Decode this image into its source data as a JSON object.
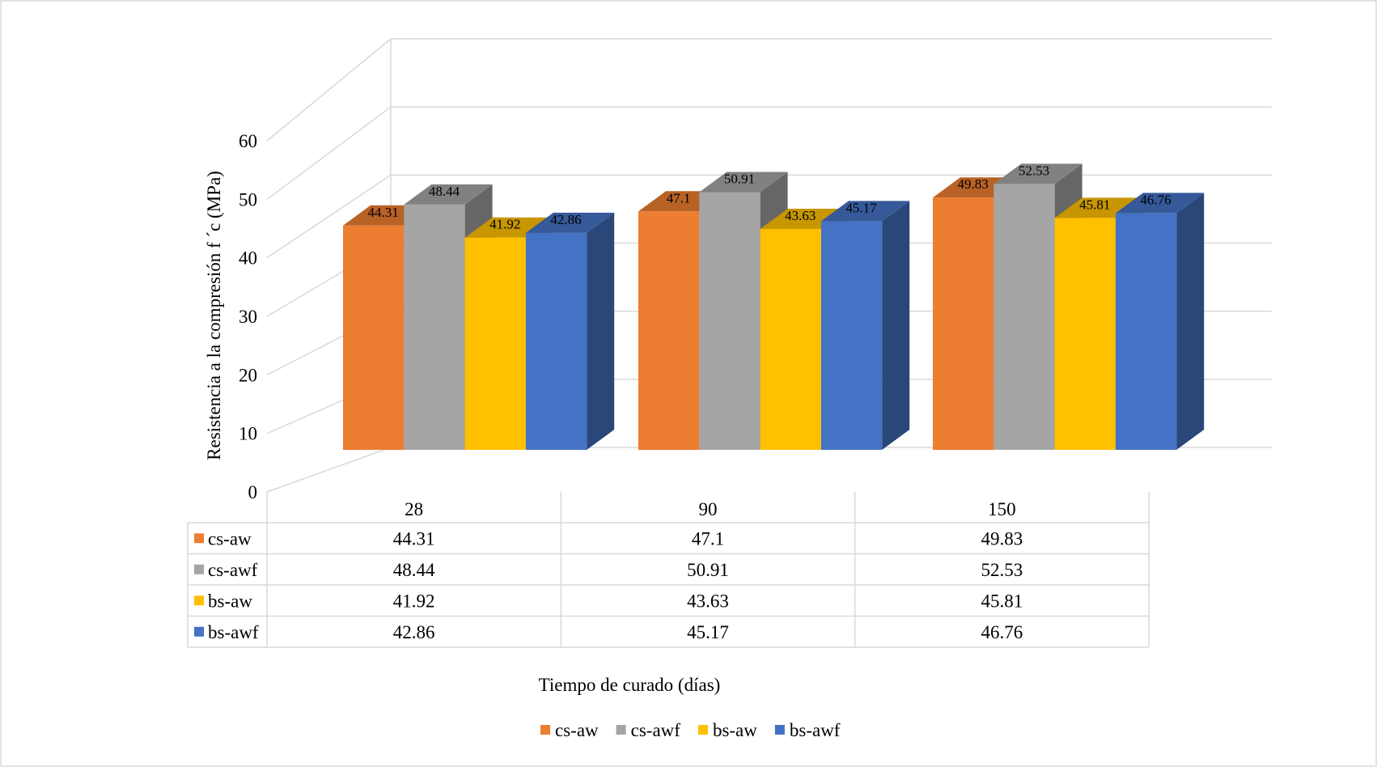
{
  "chart_data": {
    "type": "bar",
    "style": "3d-clustered-column-with-data-table",
    "title": "",
    "xlabel": "Tiempo de curado (días)",
    "ylabel": "Resistencia a la compresión f ´c (MPa)",
    "categories": [
      "28",
      "90",
      "150"
    ],
    "ylim": [
      0,
      60
    ],
    "yticks": [
      "0",
      "10",
      "20",
      "30",
      "40",
      "50",
      "60"
    ],
    "grid": true,
    "legend_position": "bottom",
    "series": [
      {
        "name": "cs-aw",
        "color": "#ED7D31",
        "values": [
          44.31,
          47.1,
          49.83
        ],
        "labels": [
          "44.31",
          "47.1",
          "49.83"
        ]
      },
      {
        "name": "cs-awf",
        "color": "#A5A5A5",
        "values": [
          48.44,
          50.91,
          52.53
        ],
        "labels": [
          "48.44",
          "50.91",
          "52.53"
        ]
      },
      {
        "name": "bs-aw",
        "color": "#FFC000",
        "values": [
          41.92,
          43.63,
          45.81
        ],
        "labels": [
          "41.92",
          "43.63",
          "45.81"
        ]
      },
      {
        "name": "bs-awf",
        "color": "#4472C4",
        "values": [
          42.86,
          45.17,
          46.76
        ],
        "labels": [
          "42.86",
          "45.17",
          "46.76"
        ]
      }
    ]
  }
}
